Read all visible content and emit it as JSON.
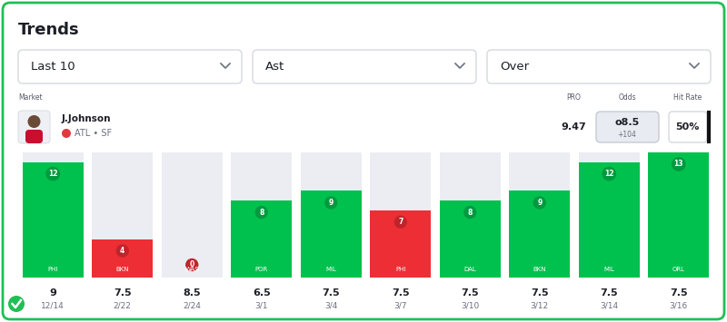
{
  "header": {
    "title": "Trends",
    "filters": [
      "Last 10",
      "Ast",
      "Over"
    ]
  },
  "market": {
    "label": "Market",
    "player": "J.Johnson",
    "team": "ATL • SF",
    "pro_label": "PRO",
    "pro": 9.47,
    "odds_label": "Odds",
    "odds_line": "o8.5",
    "odds_price": "+104",
    "hit_rate_label": "Hit Rate",
    "hit_rate": "50%"
  },
  "chart_data": {
    "type": "bar",
    "categories": [
      "PHI",
      "BKN",
      "WAS",
      "POR",
      "MIL",
      "PHI",
      "DAL",
      "BKN",
      "MIL",
      "ORL"
    ],
    "values": [
      12,
      4,
      0,
      8,
      9,
      7,
      8,
      9,
      12,
      13
    ],
    "colors": [
      "#00c14e",
      "#ee2e35",
      "#ee2e35",
      "#00c14e",
      "#00c14e",
      "#ee2e35",
      "#00c14e",
      "#00c14e",
      "#00c14e",
      "#00c14e"
    ],
    "prop_lines": [
      9,
      7.5,
      8.5,
      6.5,
      7.5,
      7.5,
      7.5,
      7.5,
      7.5,
      7.5
    ],
    "dates": [
      "12/14",
      "2/22",
      "2/24",
      "3/1",
      "3/4",
      "3/7",
      "3/10",
      "3/12",
      "3/14",
      "3/16"
    ],
    "ylim": [
      0,
      13
    ],
    "grid": false,
    "data_labels": true,
    "tick_labels": false
  }
}
